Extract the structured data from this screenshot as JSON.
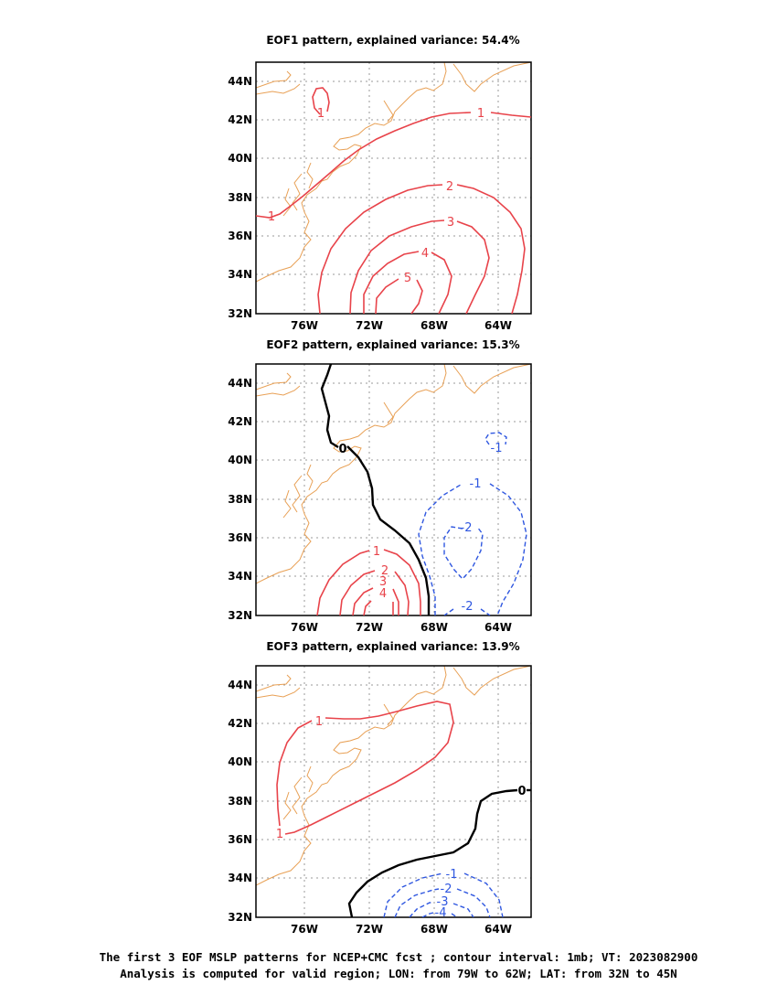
{
  "panels": [
    {
      "title": "EOF1 pattern, explained variance: 54.4%",
      "contours": [
        {
          "label": "1",
          "sign": "positive"
        },
        {
          "label": "1",
          "sign": "positive"
        },
        {
          "label": "1",
          "sign": "positive"
        },
        {
          "label": "2",
          "sign": "positive"
        },
        {
          "label": "3",
          "sign": "positive"
        },
        {
          "label": "4",
          "sign": "positive"
        },
        {
          "label": "5",
          "sign": "positive"
        }
      ]
    },
    {
      "title": "EOF2 pattern, explained variance: 15.3%",
      "contours": [
        {
          "label": "0",
          "sign": "zero"
        },
        {
          "label": "1",
          "sign": "positive"
        },
        {
          "label": "2",
          "sign": "positive"
        },
        {
          "label": "3",
          "sign": "positive"
        },
        {
          "label": "4",
          "sign": "positive"
        },
        {
          "label": "-1",
          "sign": "negative"
        },
        {
          "label": "-1",
          "sign": "negative"
        },
        {
          "label": "-2",
          "sign": "negative"
        },
        {
          "label": "-2",
          "sign": "negative"
        }
      ]
    },
    {
      "title": "EOF3 pattern, explained variance: 13.9%",
      "contours": [
        {
          "label": "1",
          "sign": "positive"
        },
        {
          "label": "1",
          "sign": "positive"
        },
        {
          "label": "0",
          "sign": "zero"
        },
        {
          "label": "-1",
          "sign": "negative"
        },
        {
          "label": "-2",
          "sign": "negative"
        },
        {
          "label": "-3",
          "sign": "negative"
        },
        {
          "label": "-4",
          "sign": "negative"
        }
      ]
    }
  ],
  "axes": {
    "lat_ticks": [
      "44N",
      "42N",
      "40N",
      "38N",
      "36N",
      "34N",
      "32N"
    ],
    "lon_ticks": [
      "76W",
      "72W",
      "68W",
      "64W"
    ]
  },
  "colors": {
    "positive_contour": "#e8434a",
    "negative_contour": "#2f57e0",
    "zero_contour": "#000000",
    "coastline": "#e8a055",
    "grid": "#9a9a9a"
  },
  "caption": {
    "line1": "The first 3 EOF MSLP patterns for NCEP+CMC fcst ; contour interval: 1mb; VT: 2023082900",
    "line2": "Analysis is computed for valid region; LON: from 79W to 62W; LAT: from 32N to 45N"
  }
}
